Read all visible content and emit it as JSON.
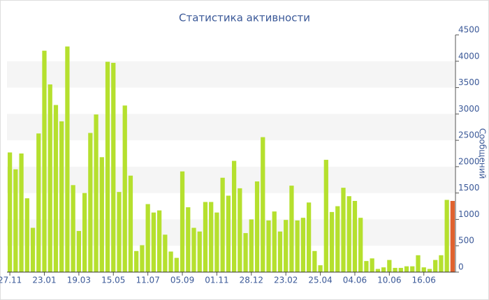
{
  "chart_data": {
    "type": "bar",
    "title": "Статистика активности",
    "y_label": "Сообщений",
    "categories": [
      "27.11",
      null,
      null,
      null,
      null,
      null,
      "23.01",
      null,
      null,
      null,
      null,
      null,
      "19.03",
      null,
      null,
      null,
      null,
      null,
      "15.05",
      null,
      null,
      null,
      null,
      null,
      "11.07",
      null,
      null,
      null,
      null,
      null,
      "05.09",
      null,
      null,
      null,
      null,
      null,
      "01.11",
      null,
      null,
      null,
      null,
      null,
      "28.12",
      null,
      null,
      null,
      null,
      null,
      "23.02",
      null,
      null,
      null,
      null,
      null,
      "25.04",
      null,
      null,
      null,
      null,
      null,
      "04.06",
      null,
      null,
      null,
      null,
      null,
      "10.06",
      null,
      null,
      null,
      null,
      null,
      "16.06",
      null,
      null,
      null,
      null,
      null
    ],
    "values": [
      2270,
      1950,
      2250,
      1400,
      840,
      2630,
      4200,
      3560,
      3170,
      2860,
      4280,
      1650,
      780,
      1500,
      2640,
      2990,
      2180,
      3990,
      3970,
      1520,
      3160,
      1830,
      400,
      510,
      1290,
      1130,
      1170,
      710,
      390,
      270,
      1910,
      1230,
      840,
      770,
      1330,
      1330,
      1130,
      1790,
      1450,
      2110,
      1590,
      740,
      1000,
      1720,
      2560,
      980,
      1150,
      770,
      990,
      1640,
      980,
      1030,
      1320,
      400,
      130,
      2130,
      1140,
      1250,
      1600,
      1440,
      1350,
      1030,
      210,
      260,
      60,
      90,
      230,
      80,
      80,
      110,
      110,
      320,
      90,
      60,
      230,
      320,
      1370,
      1350
    ],
    "color": "#b5e02e",
    "last_color": "#e0622e",
    "ylim": [
      0,
      4500
    ],
    "yticks": [
      0,
      500,
      1000,
      1500,
      2000,
      2500,
      3000,
      3500,
      4000,
      4500
    ],
    "grid": "bands"
  }
}
